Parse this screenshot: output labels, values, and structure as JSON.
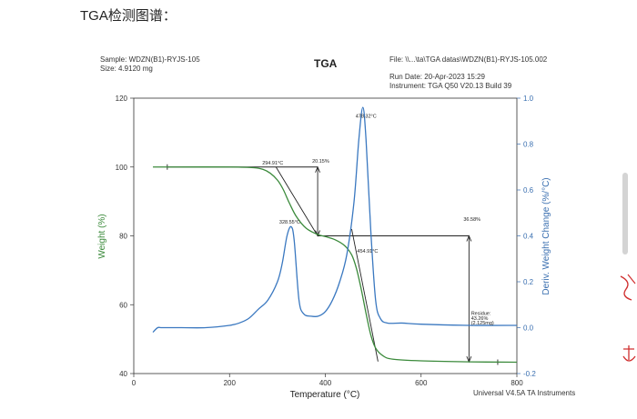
{
  "page": {
    "heading": "TGA检测图谱："
  },
  "meta": {
    "sample": "Sample: WDZN(B1)-RYJS-105",
    "size": "Size:  4.9120 mg",
    "file": "File: \\\\...\\ta\\TGA datas\\WDZN(B1)-RYJS-105.002",
    "run_date": "Run Date: 20-Apr-2023 15:29",
    "instrument": "Instrument: TGA Q50 V20.13 Build 39",
    "footer": "Universal V4.5A TA Instruments"
  },
  "chart_data": {
    "type": "line",
    "title": "TGA",
    "xlabel": "Temperature (°C)",
    "ylabel_left": "Weight (%)",
    "ylabel_right": "Deriv. Weight Change (%/°C)",
    "xlim": [
      0,
      800
    ],
    "ylim_left": [
      40,
      120
    ],
    "ylim_right": [
      -0.2,
      1.0
    ],
    "x_ticks": [
      "0",
      "200",
      "400",
      "600",
      "800"
    ],
    "y_left_ticks": [
      "40",
      "60",
      "80",
      "100",
      "120"
    ],
    "y_right_ticks": [
      "-0.2",
      "0.0",
      "0.2",
      "0.4",
      "0.6",
      "0.8",
      "1.0"
    ],
    "grid": false,
    "colors": {
      "weight": "#3b8a3b",
      "deriv": "#3a78c0",
      "axis_right": "#3a6fb0"
    },
    "series": [
      {
        "axis": "left",
        "x": [
          40,
          100,
          200,
          250,
          270,
          285,
          300,
          312,
          325,
          340,
          360,
          384,
          400,
          420,
          440,
          455,
          465,
          475,
          485,
          495,
          505,
          520,
          540,
          600,
          700,
          800
        ],
        "y": [
          100,
          100,
          100,
          99.8,
          99.3,
          98.2,
          96.2,
          93.5,
          89.5,
          85.5,
          82.2,
          80.4,
          79.8,
          78.9,
          77.2,
          74.5,
          70.5,
          64.5,
          57.5,
          51.2,
          47.4,
          45.2,
          44.2,
          43.7,
          43.4,
          43.3
        ]
      },
      {
        "axis": "right",
        "x": [
          40,
          50,
          60,
          100,
          150,
          200,
          220,
          240,
          260,
          280,
          300,
          310,
          320,
          328.55,
          335,
          345,
          355,
          370,
          385,
          400,
          415,
          430,
          445,
          460,
          470,
          478.32,
          485,
          495,
          505,
          515,
          530,
          560,
          600,
          700,
          800
        ],
        "y": [
          -0.02,
          0.0,
          0.0,
          0.0,
          0.0,
          0.01,
          0.02,
          0.04,
          0.08,
          0.12,
          0.2,
          0.28,
          0.4,
          0.44,
          0.38,
          0.12,
          0.06,
          0.05,
          0.05,
          0.07,
          0.12,
          0.2,
          0.32,
          0.55,
          0.82,
          0.96,
          0.82,
          0.42,
          0.12,
          0.04,
          0.02,
          0.02,
          0.015,
          0.01,
          0.01
        ]
      }
    ],
    "annotations": [
      {
        "text": "294.91°C",
        "x": 294.91,
        "y": 100
      },
      {
        "text": "20.15%",
        "x": 384,
        "y": 100
      },
      {
        "text": "478.32°C",
        "x": 478.32,
        "y": 113
      },
      {
        "text": "328.55°C",
        "x": 328.55,
        "y": 82.5
      },
      {
        "text": "36.58%",
        "x": 700,
        "y": 83
      },
      {
        "text": "454.91°C",
        "x": 454.91,
        "y": 77
      },
      {
        "text": "Residue:",
        "x": 750,
        "y": 57
      },
      {
        "text": "43.26%",
        "x": 750,
        "y": 55.6
      },
      {
        "text": "(2.125mg)",
        "x": 750,
        "y": 54.2
      }
    ]
  }
}
